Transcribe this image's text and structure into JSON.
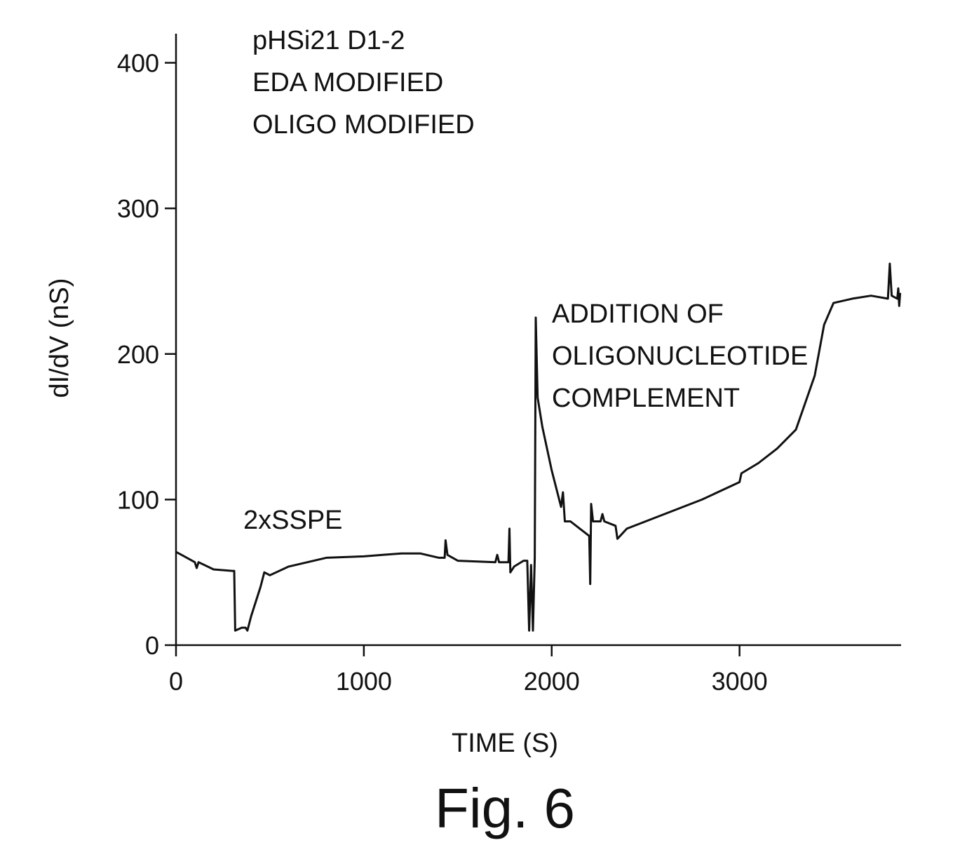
{
  "chart_data": {
    "type": "line",
    "x_label": "TIME (S)",
    "y_label": "dI/dV (nS)",
    "caption": "Fig. 6",
    "annotations": [
      [
        "pHSi21 D1-2",
        "EDA MODIFIED",
        "OLIGO MODIFIED"
      ],
      [
        "2xSSPE"
      ],
      [
        "ADDITION OF",
        "OLIGONUCLEOTIDE",
        "COMPLEMENT"
      ]
    ],
    "xlim": [
      0,
      3860
    ],
    "ylim": [
      0,
      420
    ],
    "xticks": [
      0,
      1000,
      2000,
      3000
    ],
    "yticks": [
      0,
      100,
      200,
      300,
      400
    ],
    "series": [
      {
        "color": "#111111",
        "x": [
          0,
          30,
          100,
          110,
          120,
          200,
          300,
          310,
          315,
          350,
          370,
          380,
          400,
          450,
          470,
          500,
          600,
          700,
          800,
          1000,
          1100,
          1200,
          1300,
          1400,
          1430,
          1435,
          1445,
          1500,
          1700,
          1710,
          1720,
          1770,
          1775,
          1780,
          1800,
          1850,
          1870,
          1880,
          1890,
          1900,
          1910,
          1915,
          1925,
          1950,
          2000,
          2050,
          2060,
          2070,
          2100,
          2150,
          2200,
          2205,
          2210,
          2220,
          2260,
          2270,
          2280,
          2340,
          2350,
          2400,
          2600,
          2800,
          3000,
          3010,
          3100,
          3200,
          3300,
          3400,
          3450,
          3500,
          3600,
          3700,
          3790,
          3800,
          3810,
          3840,
          3845,
          3850,
          3855
        ],
        "values": [
          64,
          62,
          57,
          53,
          57,
          52,
          51,
          51,
          10,
          12,
          12,
          10,
          20,
          40,
          50,
          48,
          54,
          57,
          60,
          61,
          62,
          63,
          63,
          60,
          60,
          72,
          62,
          58,
          57,
          62,
          57,
          57,
          80,
          50,
          54,
          58,
          58,
          10,
          55,
          10,
          60,
          225,
          170,
          150,
          120,
          95,
          105,
          85,
          85,
          80,
          75,
          42,
          97,
          85,
          85,
          90,
          85,
          82,
          73,
          80,
          90,
          100,
          112,
          118,
          125,
          135,
          148,
          185,
          220,
          235,
          238,
          240,
          238,
          262,
          240,
          238,
          245,
          233,
          242
        ]
      }
    ]
  }
}
